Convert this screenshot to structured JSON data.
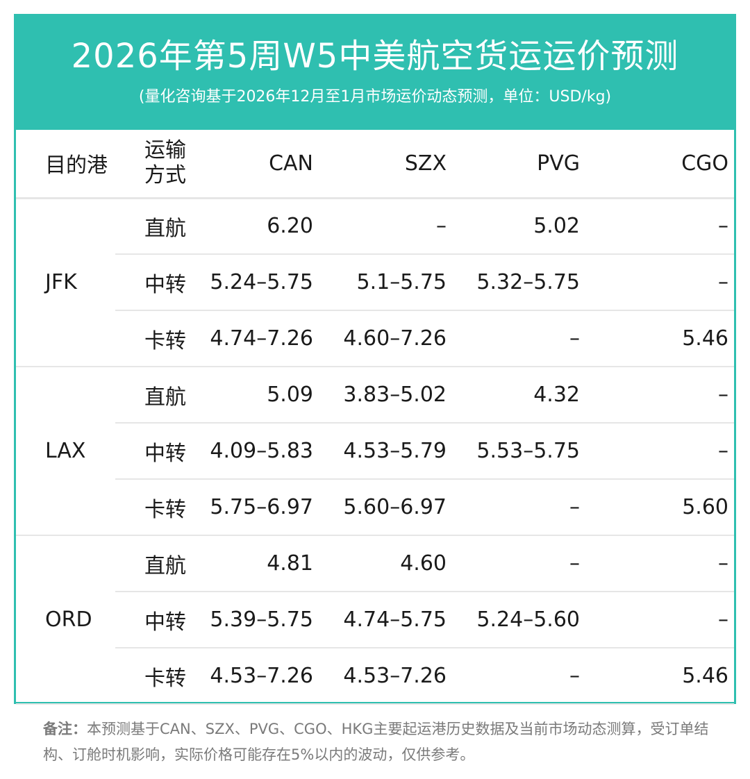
{
  "header": {
    "title": "2026年第5周W5中美航空货运运价预测",
    "subtitle": "(量化咨询基于2026年12月至1月市场运价动态预测，单位：USD/kg)"
  },
  "table": {
    "columns": [
      "目的港",
      "运输方式",
      "CAN",
      "SZX",
      "PVG",
      "CGO"
    ],
    "mode_header_lines": [
      "运输",
      "方式"
    ],
    "groups": [
      {
        "port": "JFK",
        "rows": [
          {
            "mode": "直航",
            "values": [
              "6.20",
              "–",
              "5.02",
              "–"
            ]
          },
          {
            "mode": "中转",
            "values": [
              "5.24–5.75",
              "5.1–5.75",
              "5.32–5.75",
              "–"
            ]
          },
          {
            "mode": "卡转",
            "values": [
              "4.74–7.26",
              "4.60–7.26",
              "–",
              "5.46"
            ]
          }
        ]
      },
      {
        "port": "LAX",
        "rows": [
          {
            "mode": "直航",
            "values": [
              "5.09",
              "3.83–5.02",
              "4.32",
              "–"
            ]
          },
          {
            "mode": "中转",
            "values": [
              "4.09–5.83",
              "4.53–5.79",
              "5.53–5.75",
              "–"
            ]
          },
          {
            "mode": "卡转",
            "values": [
              "5.75–6.97",
              "5.60–6.97",
              "–",
              "5.60"
            ]
          }
        ]
      },
      {
        "port": "ORD",
        "rows": [
          {
            "mode": "直航",
            "values": [
              "4.81",
              "4.60",
              "–",
              "–"
            ]
          },
          {
            "mode": "中转",
            "values": [
              "5.39–5.75",
              "4.74–5.75",
              "5.24–5.60",
              "–"
            ]
          },
          {
            "mode": "卡转",
            "values": [
              "4.53–7.26",
              "4.53–7.26",
              "–",
              "5.46"
            ]
          }
        ]
      }
    ]
  },
  "note": {
    "label": "备注：",
    "text": "本预测基于CAN、SZX、PVG、CGO、HKG主要起运港历史数据及当前市场动态测算，受订单结构、订舱时机影响，实际价格可能存在5%以内的波动，仅供参考。"
  },
  "colors": {
    "accent": "#2fbfb0",
    "divider": "#e6e6e6",
    "note_text": "#7a7a7a"
  }
}
